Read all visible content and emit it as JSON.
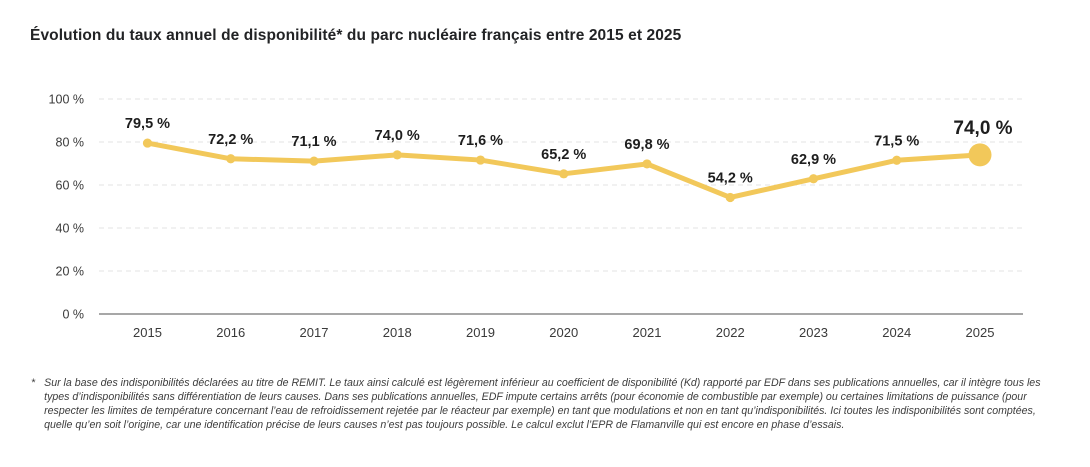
{
  "page": {
    "title": "Évolution du taux annuel de disponibilité* du parc nucléaire français entre 2015 et 2025"
  },
  "chart_data": {
    "type": "line",
    "title": "Évolution du taux annuel de disponibilité* du parc nucléaire français entre 2015 et 2025",
    "categories": [
      "2015",
      "2016",
      "2017",
      "2018",
      "2019",
      "2020",
      "2021",
      "2022",
      "2023",
      "2024",
      "2025"
    ],
    "series": [
      {
        "name": "Taux annuel de disponibilité",
        "values": [
          79.5,
          72.2,
          71.1,
          74.0,
          71.6,
          65.2,
          69.8,
          54.2,
          62.9,
          71.5,
          74.0
        ]
      }
    ],
    "point_labels": [
      "79,5 %",
      "72,2 %",
      "71,1 %",
      "74,0 %",
      "71,6 %",
      "65,2 %",
      "69,8 %",
      "54,2 %",
      "62,9 %",
      "71,5 %",
      "74,0 %"
    ],
    "y_ticks": [
      {
        "value": 0,
        "label": "0 %"
      },
      {
        "value": 20,
        "label": "20 %"
      },
      {
        "value": 40,
        "label": "40 %"
      },
      {
        "value": 60,
        "label": "60 %"
      },
      {
        "value": 80,
        "label": "80 %"
      },
      {
        "value": 100,
        "label": "100 %"
      }
    ],
    "ylim": [
      0,
      100
    ],
    "xlabel": "",
    "ylabel": "",
    "grid": "horizontal-dashed",
    "legend": "none",
    "line_color": "#F2C85A",
    "label_color": "#1e1e1e",
    "axis_color": "#8a8a8a",
    "grid_color": "#e3e3e3",
    "tick_label_color": "#3a3a3a",
    "highlight_last_point": true
  },
  "footnote": {
    "marker": "*",
    "text": "Sur la base des indisponibilités déclarées au titre de REMIT. Le taux ainsi calculé est légèrement inférieur au coefficient de disponibilité (Kd) rapporté par EDF dans ses publications annuelles, car il intègre tous les types d’indisponibilités sans différentiation de leurs causes. Dans ses publications annuelles, EDF impute certains arrêts (pour économie de combustible par exemple) ou certaines limitations de puissance (pour respecter les limites de température concernant l’eau de refroidissement rejetée par le réacteur par exemple) en tant que modulations et non en tant qu’indisponibilités. Ici toutes les indisponibilités sont comptées, quelle qu’en soit l’origine, car une identification précise de leurs causes n’est pas toujours possible. Le calcul exclut l’EPR de Flamanville qui est encore en phase d’essais."
  }
}
